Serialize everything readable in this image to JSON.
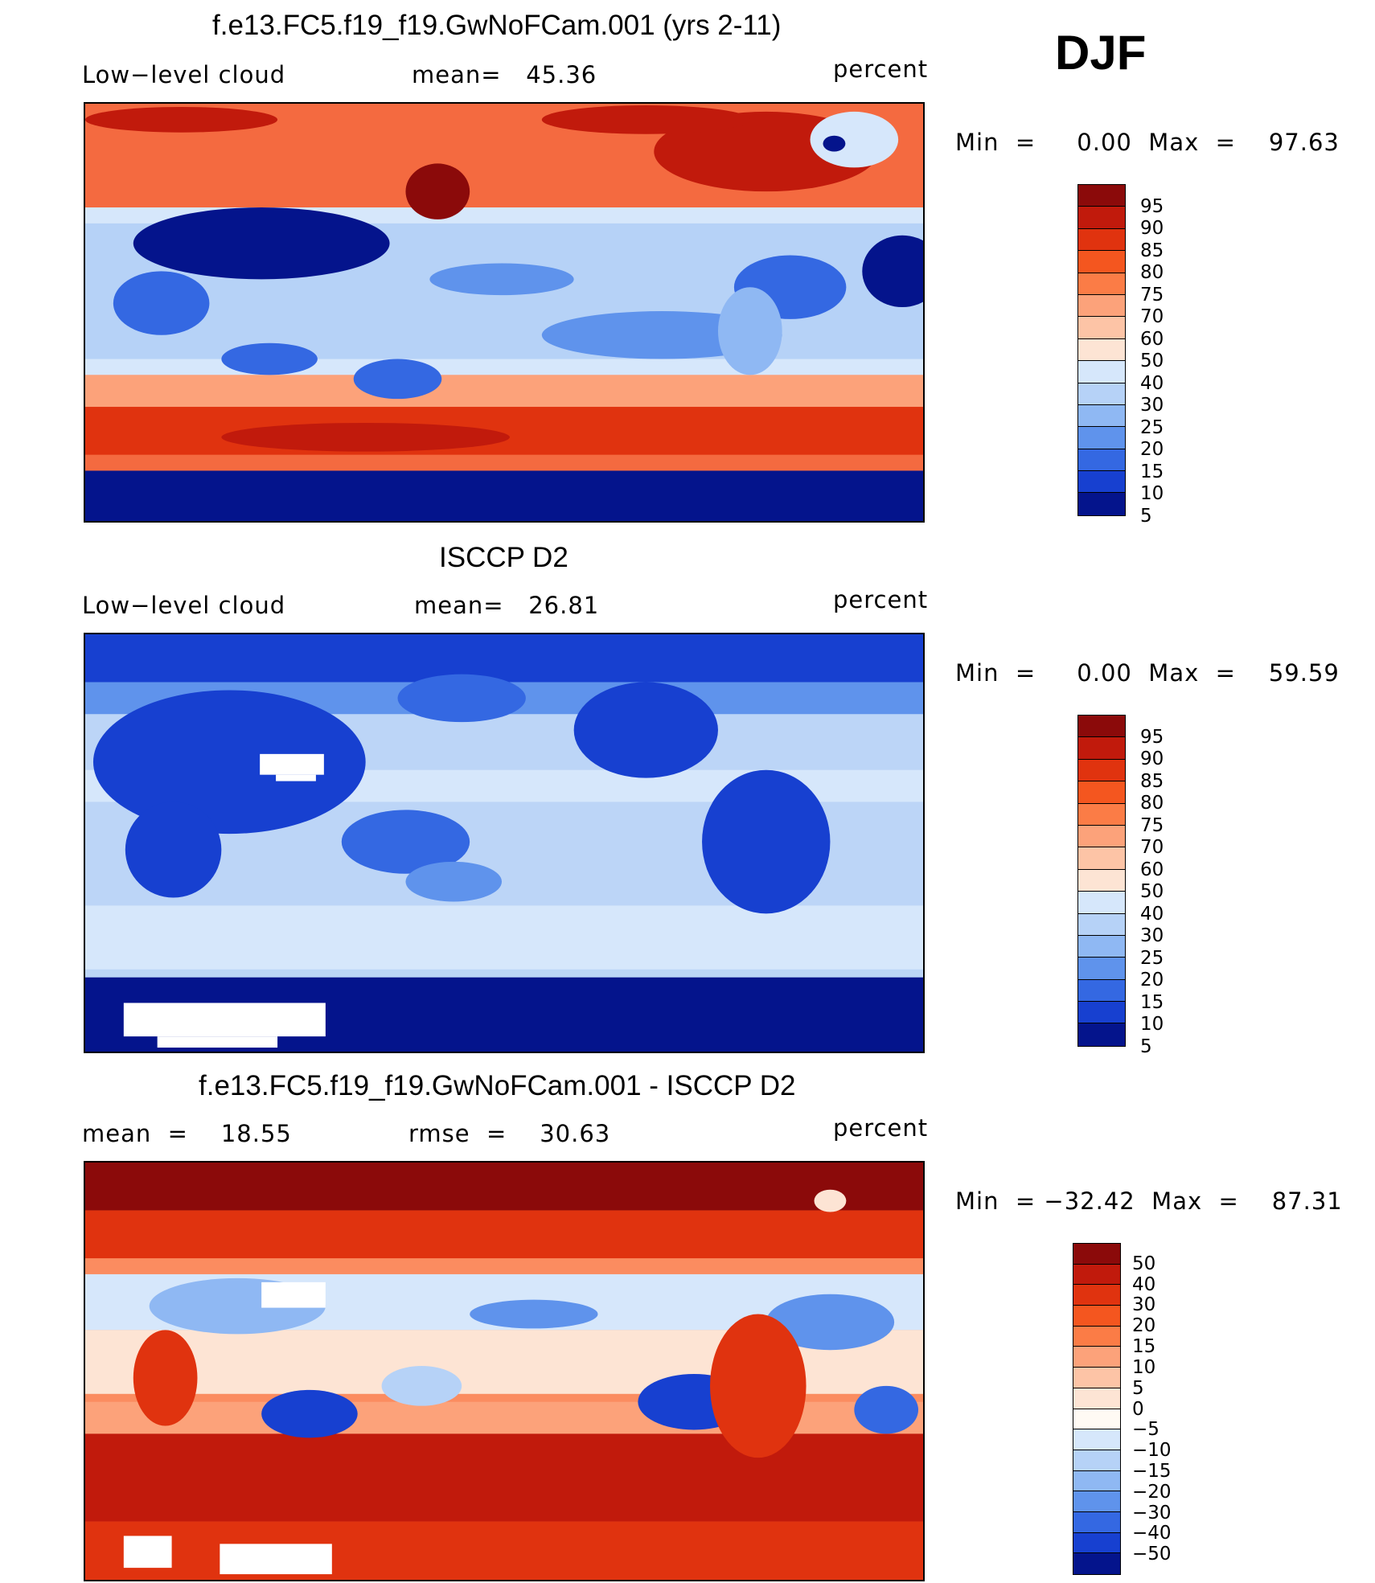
{
  "header": {
    "season": "DJF"
  },
  "panels": [
    {
      "title": "f.e13.FC5.f19_f19.GwNoFCam.001 (yrs 2-11)",
      "left_label": "Low−level cloud",
      "center_label": "mean=   45.36",
      "right_label": "percent",
      "range_label": "Min  =     0.00  Max  =    97.63",
      "colorbar_labels": [
        "95",
        "90",
        "85",
        "80",
        "75",
        "70",
        "60",
        "50",
        "40",
        "30",
        "25",
        "20",
        "15",
        "10",
        "5"
      ],
      "colorbar_colors": [
        "#8b0a0a",
        "#c11a0c",
        "#e0330f",
        "#f4561f",
        "#fb7c46",
        "#fca27a",
        "#fdc4a6",
        "#fde4d4",
        "#d6e7fb",
        "#b6d2f7",
        "#8fb8f3",
        "#5f93ec",
        "#3468e2",
        "#1740d0",
        "#04148c"
      ],
      "map_base_color": "#f46a40"
    },
    {
      "title": "ISCCP D2",
      "left_label": "Low−level cloud",
      "center_label": "mean=   26.81",
      "right_label": "percent",
      "range_label": "Min  =     0.00  Max  =    59.59",
      "colorbar_labels": [
        "95",
        "90",
        "85",
        "80",
        "75",
        "70",
        "60",
        "50",
        "40",
        "30",
        "25",
        "20",
        "15",
        "10",
        "5"
      ],
      "colorbar_colors": [
        "#8b0a0a",
        "#c11a0c",
        "#e0330f",
        "#f4561f",
        "#fb7c46",
        "#fca27a",
        "#fdc4a6",
        "#fde4d4",
        "#d6e7fb",
        "#b6d2f7",
        "#8fb8f3",
        "#5f93ec",
        "#3468e2",
        "#1740d0",
        "#04148c"
      ],
      "map_base_color": "#bcd5f7"
    },
    {
      "title": "f.e13.FC5.f19_f19.GwNoFCam.001 - ISCCP D2",
      "left_label": "mean  =    18.55",
      "center_label": "rmse  =    30.63",
      "right_label": "percent",
      "range_label": "Min  = −32.42  Max  =    87.31",
      "colorbar_labels": [
        "50",
        "40",
        "30",
        "20",
        "15",
        "10",
        "5",
        "0",
        "−5",
        "−10",
        "−15",
        "−20",
        "−30",
        "−40",
        "−50"
      ],
      "colorbar_colors": [
        "#8b0a0a",
        "#c11a0c",
        "#e0330f",
        "#f4561f",
        "#fb7c46",
        "#fca27a",
        "#fdc4a6",
        "#fde4d4",
        "#fffaf4",
        "#d6e7fb",
        "#b6d2f7",
        "#8fb8f3",
        "#5f93ec",
        "#3468e2",
        "#1740d0",
        "#04148c"
      ],
      "map_base_color": "#fb8c60"
    }
  ]
}
